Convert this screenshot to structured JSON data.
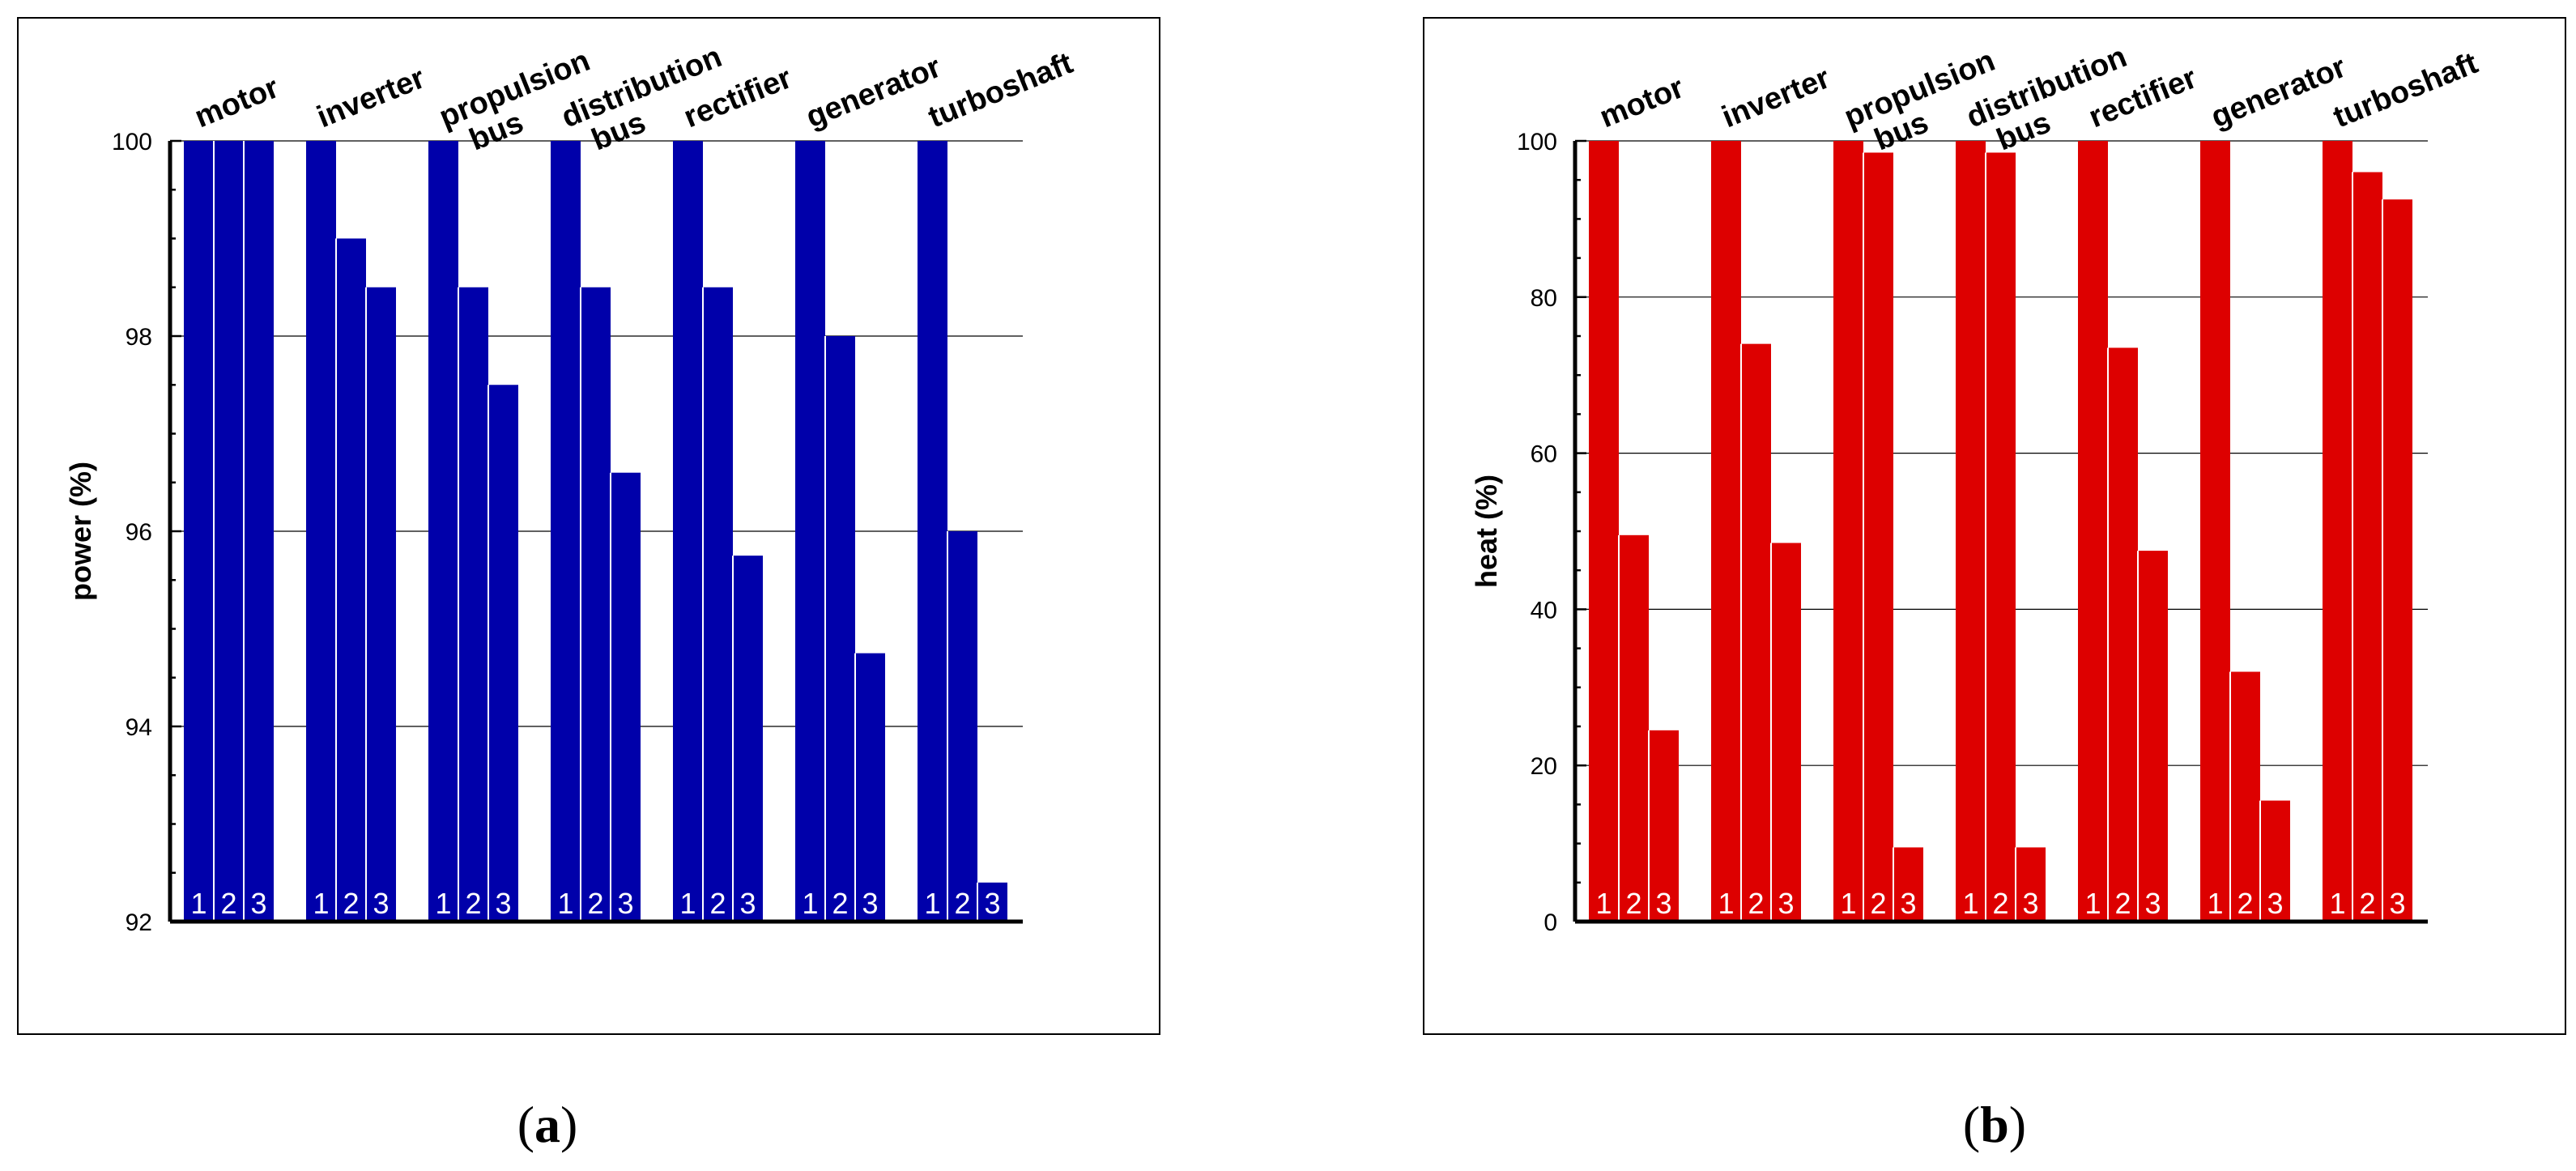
{
  "chart_data": [
    {
      "type": "bar",
      "panel_label": "a",
      "ylabel": "power (%)",
      "ylim": [
        92,
        100
      ],
      "yticks": [
        92,
        94,
        96,
        98,
        100
      ],
      "grid": true,
      "color": "#0000aa",
      "categories": [
        "motor",
        "inverter",
        "propulsion bus",
        "distribution bus",
        "rectifier",
        "generator",
        "turboshaft"
      ],
      "category_lines": [
        [
          "motor"
        ],
        [
          "inverter"
        ],
        [
          "propulsion",
          "bus"
        ],
        [
          "distribution",
          "bus"
        ],
        [
          "rectifier"
        ],
        [
          "generator"
        ],
        [
          "turboshaft"
        ]
      ],
      "bar_labels": [
        "1",
        "2",
        "3"
      ],
      "series": [
        {
          "name": "1",
          "values": [
            100,
            100,
            100,
            100,
            100,
            100,
            100
          ]
        },
        {
          "name": "2",
          "values": [
            100,
            99.0,
            98.5,
            98.5,
            98.5,
            98.0,
            96.0
          ]
        },
        {
          "name": "3",
          "values": [
            100,
            98.5,
            97.5,
            96.6,
            95.75,
            94.75,
            92.4
          ]
        }
      ]
    },
    {
      "type": "bar",
      "panel_label": "b",
      "ylabel": "heat (%)",
      "ylim": [
        0,
        100
      ],
      "yticks": [
        0,
        20,
        40,
        60,
        80,
        100
      ],
      "grid": true,
      "color": "#dd0000",
      "categories": [
        "motor",
        "inverter",
        "propulsion bus",
        "distribution bus",
        "rectifier",
        "generator",
        "turboshaft"
      ],
      "category_lines": [
        [
          "motor"
        ],
        [
          "inverter"
        ],
        [
          "propulsion",
          "bus"
        ],
        [
          "distribution",
          "bus"
        ],
        [
          "rectifier"
        ],
        [
          "generator"
        ],
        [
          "turboshaft"
        ]
      ],
      "bar_labels": [
        "1",
        "2",
        "3"
      ],
      "series": [
        {
          "name": "1",
          "values": [
            100,
            100,
            100,
            100,
            100,
            100,
            100
          ]
        },
        {
          "name": "2",
          "values": [
            49.5,
            74,
            98.5,
            98.5,
            73.5,
            32,
            96
          ]
        },
        {
          "name": "3",
          "values": [
            24.5,
            48.5,
            9.5,
            9.5,
            47.5,
            15.5,
            92.5
          ]
        }
      ]
    }
  ]
}
